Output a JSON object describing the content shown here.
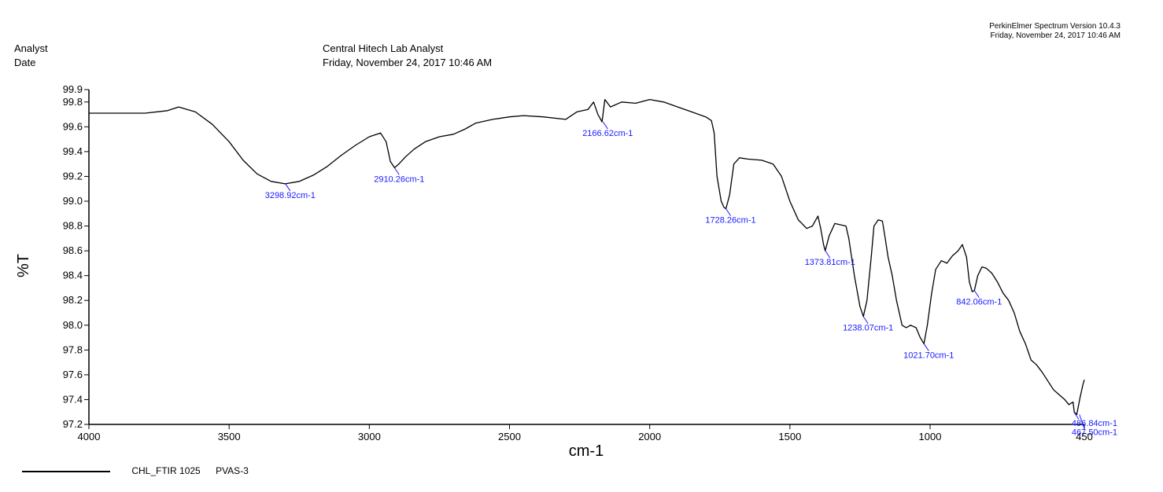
{
  "header": {
    "analyst_label": "Analyst",
    "date_label": "Date",
    "analyst_value": "Central Hitech Lab Analyst",
    "date_value": "Friday, November 24, 2017 10:46 AM",
    "software": "PerkinElmer Spectrum Version 10.4.3",
    "software_date": "Friday, November 24, 2017 10:46 AM"
  },
  "legend": {
    "sample_id": "CHL_FTIR 1025",
    "sample_name": "PVAS-3"
  },
  "chart_data": {
    "type": "line",
    "xlabel": "cm-1",
    "ylabel": "%T",
    "xlim": [
      4000,
      450
    ],
    "ylim": [
      97.2,
      99.9
    ],
    "x_reversed": true,
    "grid": false,
    "x_ticks": [
      4000,
      3500,
      3000,
      2500,
      2000,
      1500,
      1000,
      450
    ],
    "y_ticks": [
      97.2,
      97.4,
      97.6,
      97.8,
      98.0,
      98.2,
      98.4,
      98.6,
      98.8,
      99.0,
      99.2,
      99.4,
      99.6,
      99.8,
      99.9
    ],
    "line_color": "#000000",
    "label_color": "#1a1aff",
    "series": [
      {
        "name": "CHL_FTIR 1025 PVAS-3",
        "points": [
          [
            4000,
            99.71
          ],
          [
            3900,
            99.71
          ],
          [
            3800,
            99.71
          ],
          [
            3720,
            99.73
          ],
          [
            3680,
            99.76
          ],
          [
            3620,
            99.72
          ],
          [
            3560,
            99.62
          ],
          [
            3500,
            99.48
          ],
          [
            3450,
            99.33
          ],
          [
            3400,
            99.22
          ],
          [
            3350,
            99.16
          ],
          [
            3300,
            99.14
          ],
          [
            3250,
            99.16
          ],
          [
            3200,
            99.21
          ],
          [
            3150,
            99.28
          ],
          [
            3100,
            99.37
          ],
          [
            3050,
            99.45
          ],
          [
            3000,
            99.52
          ],
          [
            2960,
            99.55
          ],
          [
            2940,
            99.48
          ],
          [
            2925,
            99.32
          ],
          [
            2910,
            99.27
          ],
          [
            2895,
            99.3
          ],
          [
            2870,
            99.36
          ],
          [
            2840,
            99.42
          ],
          [
            2800,
            99.48
          ],
          [
            2750,
            99.52
          ],
          [
            2700,
            99.54
          ],
          [
            2660,
            99.58
          ],
          [
            2620,
            99.63
          ],
          [
            2560,
            99.66
          ],
          [
            2500,
            99.68
          ],
          [
            2450,
            99.69
          ],
          [
            2380,
            99.68
          ],
          [
            2300,
            99.66
          ],
          [
            2260,
            99.72
          ],
          [
            2220,
            99.74
          ],
          [
            2200,
            99.8
          ],
          [
            2185,
            99.7
          ],
          [
            2170,
            99.64
          ],
          [
            2160,
            99.82
          ],
          [
            2140,
            99.76
          ],
          [
            2100,
            99.8
          ],
          [
            2050,
            99.79
          ],
          [
            2000,
            99.82
          ],
          [
            1950,
            99.8
          ],
          [
            1900,
            99.76
          ],
          [
            1850,
            99.72
          ],
          [
            1800,
            99.68
          ],
          [
            1780,
            99.65
          ],
          [
            1770,
            99.55
          ],
          [
            1760,
            99.2
          ],
          [
            1745,
            99.0
          ],
          [
            1735,
            98.95
          ],
          [
            1728,
            98.94
          ],
          [
            1715,
            99.05
          ],
          [
            1700,
            99.3
          ],
          [
            1680,
            99.35
          ],
          [
            1650,
            99.34
          ],
          [
            1600,
            99.33
          ],
          [
            1560,
            99.3
          ],
          [
            1530,
            99.2
          ],
          [
            1500,
            99.0
          ],
          [
            1470,
            98.85
          ],
          [
            1440,
            98.78
          ],
          [
            1420,
            98.8
          ],
          [
            1400,
            98.88
          ],
          [
            1390,
            98.78
          ],
          [
            1380,
            98.65
          ],
          [
            1374,
            98.6
          ],
          [
            1360,
            98.72
          ],
          [
            1340,
            98.82
          ],
          [
            1320,
            98.81
          ],
          [
            1300,
            98.8
          ],
          [
            1290,
            98.7
          ],
          [
            1270,
            98.4
          ],
          [
            1250,
            98.15
          ],
          [
            1238,
            98.07
          ],
          [
            1225,
            98.2
          ],
          [
            1210,
            98.55
          ],
          [
            1200,
            98.8
          ],
          [
            1185,
            98.85
          ],
          [
            1170,
            98.84
          ],
          [
            1160,
            98.7
          ],
          [
            1150,
            98.55
          ],
          [
            1135,
            98.4
          ],
          [
            1120,
            98.2
          ],
          [
            1100,
            98.0
          ],
          [
            1085,
            97.98
          ],
          [
            1070,
            98.0
          ],
          [
            1050,
            97.98
          ],
          [
            1035,
            97.9
          ],
          [
            1022,
            97.85
          ],
          [
            1010,
            98.0
          ],
          [
            995,
            98.25
          ],
          [
            980,
            98.45
          ],
          [
            960,
            98.52
          ],
          [
            940,
            98.5
          ],
          [
            920,
            98.56
          ],
          [
            900,
            98.6
          ],
          [
            885,
            98.65
          ],
          [
            870,
            98.55
          ],
          [
            860,
            98.35
          ],
          [
            850,
            98.27
          ],
          [
            842,
            98.28
          ],
          [
            830,
            98.4
          ],
          [
            815,
            98.47
          ],
          [
            800,
            98.46
          ],
          [
            780,
            98.42
          ],
          [
            760,
            98.35
          ],
          [
            740,
            98.26
          ],
          [
            720,
            98.2
          ],
          [
            700,
            98.1
          ],
          [
            680,
            97.95
          ],
          [
            660,
            97.85
          ],
          [
            640,
            97.72
          ],
          [
            620,
            97.68
          ],
          [
            600,
            97.62
          ],
          [
            580,
            97.55
          ],
          [
            560,
            97.48
          ],
          [
            540,
            97.44
          ],
          [
            520,
            97.4
          ],
          [
            505,
            97.36
          ],
          [
            490,
            97.38
          ],
          [
            486,
            97.3
          ],
          [
            477,
            97.28
          ],
          [
            465,
            97.42
          ],
          [
            455,
            97.52
          ],
          [
            450,
            97.56
          ]
        ]
      }
    ],
    "peak_labels": [
      {
        "x": 3298.92,
        "y": 99.14,
        "text": "3298.92cm-1"
      },
      {
        "x": 2910.26,
        "y": 99.27,
        "text": "2910.26cm-1"
      },
      {
        "x": 2166.62,
        "y": 99.64,
        "text": "2166.62cm-1"
      },
      {
        "x": 1728.26,
        "y": 98.94,
        "text": "1728.26cm-1"
      },
      {
        "x": 1373.81,
        "y": 98.6,
        "text": "1373.81cm-1"
      },
      {
        "x": 1238.07,
        "y": 98.07,
        "text": "1238.07cm-1"
      },
      {
        "x": 1021.7,
        "y": 97.85,
        "text": "1021.70cm-1"
      },
      {
        "x": 842.06,
        "y": 98.28,
        "text": "842.06cm-1"
      },
      {
        "x": 486.84,
        "y": 97.3,
        "text": "486.84cm-1"
      },
      {
        "x": 467.5,
        "y": 97.28,
        "text": "467.50cm-1"
      }
    ]
  }
}
